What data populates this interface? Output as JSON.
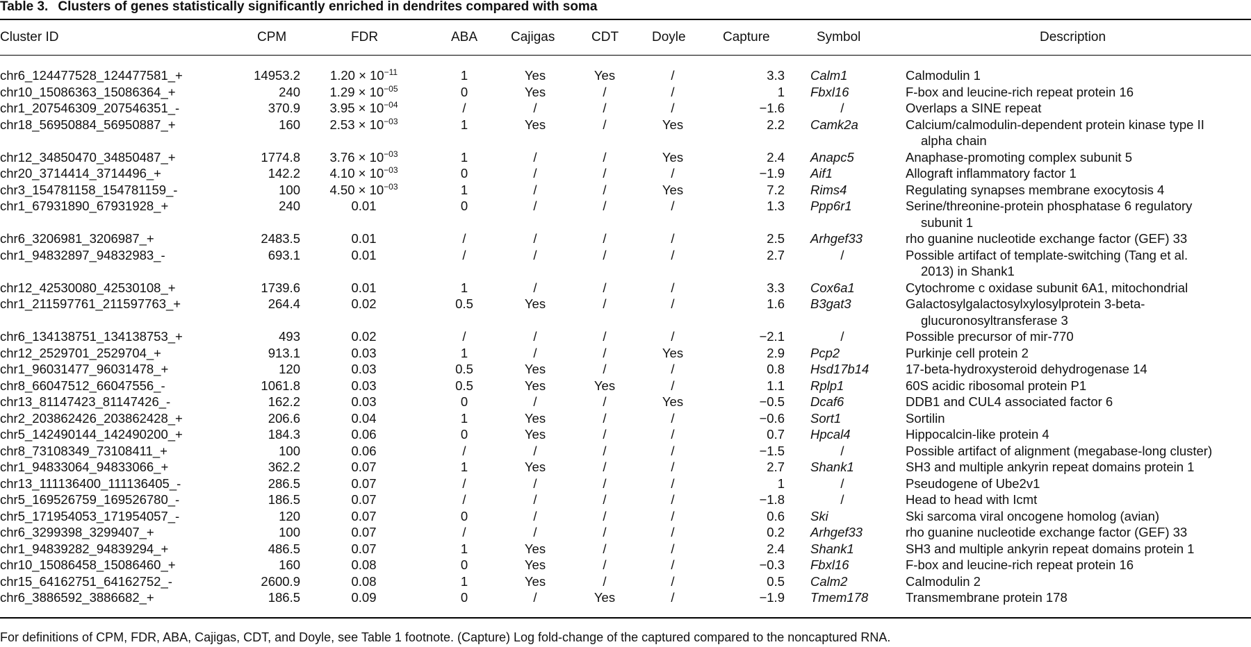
{
  "caption": {
    "label": "Table 3.",
    "title": "Clusters of genes statistically significantly enriched in dendrites compared with soma"
  },
  "columns": {
    "cluster_id": "Cluster ID",
    "cpm": "CPM",
    "fdr": "FDR",
    "aba": "ABA",
    "cajigas": "Cajigas",
    "cdt": "CDT",
    "doyle": "Doyle",
    "capture": "Capture",
    "symbol": "Symbol",
    "description": "Description"
  },
  "rows": [
    {
      "id": "chr6_124477528_124477581_+",
      "cpm": "14953.2",
      "fdr_mant": "1.20 × 10",
      "fdr_exp": "−11",
      "aba": "1",
      "cajigas": "Yes",
      "cdt": "Yes",
      "doyle": "/",
      "capture": "3.3",
      "symbol": "Calm1",
      "desc1": "Calmodulin 1",
      "desc2": ""
    },
    {
      "id": "chr10_15086363_15086364_+",
      "cpm": "240",
      "fdr_mant": "1.29 × 10",
      "fdr_exp": "−05",
      "aba": "0",
      "cajigas": "Yes",
      "cdt": "/",
      "doyle": "/",
      "capture": "1",
      "symbol": "Fbxl16",
      "desc1": "F-box and leucine-rich repeat protein 16",
      "desc2": ""
    },
    {
      "id": "chr1_207546309_207546351_-",
      "cpm": "370.9",
      "fdr_mant": "3.95 × 10",
      "fdr_exp": "−04",
      "aba": "/",
      "cajigas": "/",
      "cdt": "/",
      "doyle": "/",
      "capture": "−1.6",
      "symbol": "/",
      "desc1": "Overlaps a SINE repeat",
      "desc2": ""
    },
    {
      "id": "chr18_56950884_56950887_+",
      "cpm": "160",
      "fdr_mant": "2.53 × 10",
      "fdr_exp": "−03",
      "aba": "1",
      "cajigas": "Yes",
      "cdt": "/",
      "doyle": "Yes",
      "capture": "2.2",
      "symbol": "Camk2a",
      "desc1": "Calcium/calmodulin-dependent protein kinase type II",
      "desc2": "alpha chain"
    },
    {
      "id": "chr12_34850470_34850487_+",
      "cpm": "1774.8",
      "fdr_mant": "3.76 × 10",
      "fdr_exp": "−03",
      "aba": "1",
      "cajigas": "/",
      "cdt": "/",
      "doyle": "Yes",
      "capture": "2.4",
      "symbol": "Anapc5",
      "desc1": "Anaphase-promoting complex subunit 5",
      "desc2": ""
    },
    {
      "id": "chr20_3714414_3714496_+",
      "cpm": "142.2",
      "fdr_mant": "4.10 × 10",
      "fdr_exp": "−03",
      "aba": "0",
      "cajigas": "/",
      "cdt": "/",
      "doyle": "/",
      "capture": "−1.9",
      "symbol": "Aif1",
      "desc1": "Allograft inflammatory factor 1",
      "desc2": ""
    },
    {
      "id": "chr3_154781158_154781159_-",
      "cpm": "100",
      "fdr_mant": "4.50 × 10",
      "fdr_exp": "−03",
      "aba": "1",
      "cajigas": "/",
      "cdt": "/",
      "doyle": "Yes",
      "capture": "7.2",
      "symbol": "Rims4",
      "desc1": "Regulating synapses membrane exocytosis 4",
      "desc2": ""
    },
    {
      "id": "chr1_67931890_67931928_+",
      "cpm": "240",
      "fdr_mant": "0.01",
      "fdr_exp": "",
      "aba": "0",
      "cajigas": "/",
      "cdt": "/",
      "doyle": "/",
      "capture": "1.3",
      "symbol": "Ppp6r1",
      "desc1": "Serine/threonine-protein phosphatase 6 regulatory",
      "desc2": "subunit 1"
    },
    {
      "id": "chr6_3206981_3206987_+",
      "cpm": "2483.5",
      "fdr_mant": "0.01",
      "fdr_exp": "",
      "aba": "/",
      "cajigas": "/",
      "cdt": "/",
      "doyle": "/",
      "capture": "2.5",
      "symbol": "Arhgef33",
      "desc1": "rho guanine nucleotide exchange factor (GEF) 33",
      "desc2": ""
    },
    {
      "id": "chr1_94832897_94832983_-",
      "cpm": "693.1",
      "fdr_mant": "0.01",
      "fdr_exp": "",
      "aba": "/",
      "cajigas": "/",
      "cdt": "/",
      "doyle": "/",
      "capture": "2.7",
      "symbol": "/",
      "desc1": "Possible artifact of template-switching (Tang et al.",
      "desc2": "2013) in Shank1"
    },
    {
      "id": "chr12_42530080_42530108_+",
      "cpm": "1739.6",
      "fdr_mant": "0.01",
      "fdr_exp": "",
      "aba": "1",
      "cajigas": "/",
      "cdt": "/",
      "doyle": "/",
      "capture": "3.3",
      "symbol": "Cox6a1",
      "desc1": "Cytochrome c oxidase subunit 6A1, mitochondrial",
      "desc2": ""
    },
    {
      "id": "chr1_211597761_211597763_+",
      "cpm": "264.4",
      "fdr_mant": "0.02",
      "fdr_exp": "",
      "aba": "0.5",
      "cajigas": "Yes",
      "cdt": "/",
      "doyle": "/",
      "capture": "1.6",
      "symbol": "B3gat3",
      "desc1": "Galactosylgalactosylxylosylprotein 3-beta-",
      "desc2": "glucuronosyltransferase 3"
    },
    {
      "id": "chr6_134138751_134138753_+",
      "cpm": "493",
      "fdr_mant": "0.02",
      "fdr_exp": "",
      "aba": "/",
      "cajigas": "/",
      "cdt": "/",
      "doyle": "/",
      "capture": "−2.1",
      "symbol": "/",
      "desc1": "Possible precursor of mir-770",
      "desc2": ""
    },
    {
      "id": "chr12_2529701_2529704_+",
      "cpm": "913.1",
      "fdr_mant": "0.03",
      "fdr_exp": "",
      "aba": "1",
      "cajigas": "/",
      "cdt": "/",
      "doyle": "Yes",
      "capture": "2.9",
      "symbol": "Pcp2",
      "desc1": "Purkinje cell protein 2",
      "desc2": ""
    },
    {
      "id": "chr1_96031477_96031478_+",
      "cpm": "120",
      "fdr_mant": "0.03",
      "fdr_exp": "",
      "aba": "0.5",
      "cajigas": "Yes",
      "cdt": "/",
      "doyle": "/",
      "capture": "0.8",
      "symbol": "Hsd17b14",
      "desc1": "17-beta-hydroxysteroid dehydrogenase 14",
      "desc2": ""
    },
    {
      "id": "chr8_66047512_66047556_-",
      "cpm": "1061.8",
      "fdr_mant": "0.03",
      "fdr_exp": "",
      "aba": "0.5",
      "cajigas": "Yes",
      "cdt": "Yes",
      "doyle": "/",
      "capture": "1.1",
      "symbol": "Rplp1",
      "desc1": "60S acidic ribosomal protein P1",
      "desc2": ""
    },
    {
      "id": "chr13_81147423_81147426_-",
      "cpm": "162.2",
      "fdr_mant": "0.03",
      "fdr_exp": "",
      "aba": "0",
      "cajigas": "/",
      "cdt": "/",
      "doyle": "Yes",
      "capture": "−0.5",
      "symbol": "Dcaf6",
      "desc1": "DDB1 and CUL4 associated factor 6",
      "desc2": ""
    },
    {
      "id": "chr2_203862426_203862428_+",
      "cpm": "206.6",
      "fdr_mant": "0.04",
      "fdr_exp": "",
      "aba": "1",
      "cajigas": "Yes",
      "cdt": "/",
      "doyle": "/",
      "capture": "−0.6",
      "symbol": "Sort1",
      "desc1": "Sortilin",
      "desc2": ""
    },
    {
      "id": "chr5_142490144_142490200_+",
      "cpm": "184.3",
      "fdr_mant": "0.06",
      "fdr_exp": "",
      "aba": "0",
      "cajigas": "Yes",
      "cdt": "/",
      "doyle": "/",
      "capture": "0.7",
      "symbol": "Hpcal4",
      "desc1": "Hippocalcin-like protein 4",
      "desc2": ""
    },
    {
      "id": "chr8_73108349_73108411_+",
      "cpm": "100",
      "fdr_mant": "0.06",
      "fdr_exp": "",
      "aba": "/",
      "cajigas": "/",
      "cdt": "/",
      "doyle": "/",
      "capture": "−1.5",
      "symbol": "/",
      "desc1": "Possible artifact of alignment (megabase-long cluster)",
      "desc2": ""
    },
    {
      "id": "chr1_94833064_94833066_+",
      "cpm": "362.2",
      "fdr_mant": "0.07",
      "fdr_exp": "",
      "aba": "1",
      "cajigas": "Yes",
      "cdt": "/",
      "doyle": "/",
      "capture": "2.7",
      "symbol": "Shank1",
      "desc1": "SH3 and multiple ankyrin repeat domains protein 1",
      "desc2": ""
    },
    {
      "id": "chr13_111136400_111136405_-",
      "cpm": "286.5",
      "fdr_mant": "0.07",
      "fdr_exp": "",
      "aba": "/",
      "cajigas": "/",
      "cdt": "/",
      "doyle": "/",
      "capture": "1",
      "symbol": "/",
      "desc1": "Pseudogene of Ube2v1",
      "desc2": ""
    },
    {
      "id": "chr5_169526759_169526780_-",
      "cpm": "186.5",
      "fdr_mant": "0.07",
      "fdr_exp": "",
      "aba": "/",
      "cajigas": "/",
      "cdt": "/",
      "doyle": "/",
      "capture": "−1.8",
      "symbol": "/",
      "desc1": "Head to head with Icmt",
      "desc2": ""
    },
    {
      "id": "chr5_171954053_171954057_-",
      "cpm": "120",
      "fdr_mant": "0.07",
      "fdr_exp": "",
      "aba": "0",
      "cajigas": "/",
      "cdt": "/",
      "doyle": "/",
      "capture": "0.6",
      "symbol": "Ski",
      "desc1": "Ski sarcoma viral oncogene homolog (avian)",
      "desc2": ""
    },
    {
      "id": "chr6_3299398_3299407_+",
      "cpm": "100",
      "fdr_mant": "0.07",
      "fdr_exp": "",
      "aba": "/",
      "cajigas": "/",
      "cdt": "/",
      "doyle": "/",
      "capture": "0.2",
      "symbol": "Arhgef33",
      "desc1": "rho guanine nucleotide exchange factor (GEF) 33",
      "desc2": ""
    },
    {
      "id": "chr1_94839282_94839294_+",
      "cpm": "486.5",
      "fdr_mant": "0.07",
      "fdr_exp": "",
      "aba": "1",
      "cajigas": "Yes",
      "cdt": "/",
      "doyle": "/",
      "capture": "2.4",
      "symbol": "Shank1",
      "desc1": "SH3 and multiple ankyrin repeat domains protein 1",
      "desc2": ""
    },
    {
      "id": "chr10_15086458_15086460_+",
      "cpm": "160",
      "fdr_mant": "0.08",
      "fdr_exp": "",
      "aba": "0",
      "cajigas": "Yes",
      "cdt": "/",
      "doyle": "/",
      "capture": "−0.3",
      "symbol": "Fbxl16",
      "desc1": "F-box and leucine-rich repeat protein 16",
      "desc2": ""
    },
    {
      "id": "chr15_64162751_64162752_-",
      "cpm": "2600.9",
      "fdr_mant": "0.08",
      "fdr_exp": "",
      "aba": "1",
      "cajigas": "Yes",
      "cdt": "/",
      "doyle": "/",
      "capture": "0.5",
      "symbol": "Calm2",
      "desc1": "Calmodulin 2",
      "desc2": ""
    },
    {
      "id": "chr6_3886592_3886682_+",
      "cpm": "186.5",
      "fdr_mant": "0.09",
      "fdr_exp": "",
      "aba": "0",
      "cajigas": "/",
      "cdt": "Yes",
      "doyle": "/",
      "capture": "−1.9",
      "symbol": "Tmem178",
      "desc1": "Transmembrane protein 178",
      "desc2": ""
    }
  ],
  "footnote": "For definitions of CPM, FDR, ABA, Cajigas, CDT, and Doyle, see Table 1 footnote. (Capture) Log fold-change of the captured compared to the noncaptured RNA."
}
